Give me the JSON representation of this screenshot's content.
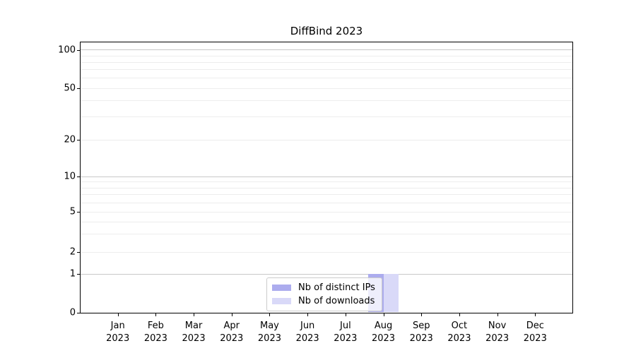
{
  "chart_data": {
    "type": "bar",
    "title": "DiffBind 2023",
    "categories": [
      "Jan 2023",
      "Feb 2023",
      "Mar 2023",
      "Apr 2023",
      "May 2023",
      "Jun 2023",
      "Jul 2023",
      "Aug 2023",
      "Sep 2023",
      "Oct 2023",
      "Nov 2023",
      "Dec 2023"
    ],
    "series": [
      {
        "name": "Nb of distinct IPs",
        "color": "#acacee",
        "values": [
          0,
          0,
          0,
          0,
          0,
          0,
          0,
          1,
          0,
          0,
          0,
          0
        ]
      },
      {
        "name": "Nb of downloads",
        "color": "#d9d9f8",
        "values": [
          0,
          0,
          0,
          0,
          0,
          0,
          0,
          1,
          0,
          0,
          0,
          0
        ]
      }
    ],
    "xlabel": "",
    "ylabel": "",
    "y_ticks": [
      0,
      1,
      2,
      5,
      10,
      20,
      50,
      100
    ],
    "ylim": [
      0,
      116
    ],
    "y_scale": "symlog",
    "grid": "horizontal",
    "legend_position": "lower center"
  }
}
